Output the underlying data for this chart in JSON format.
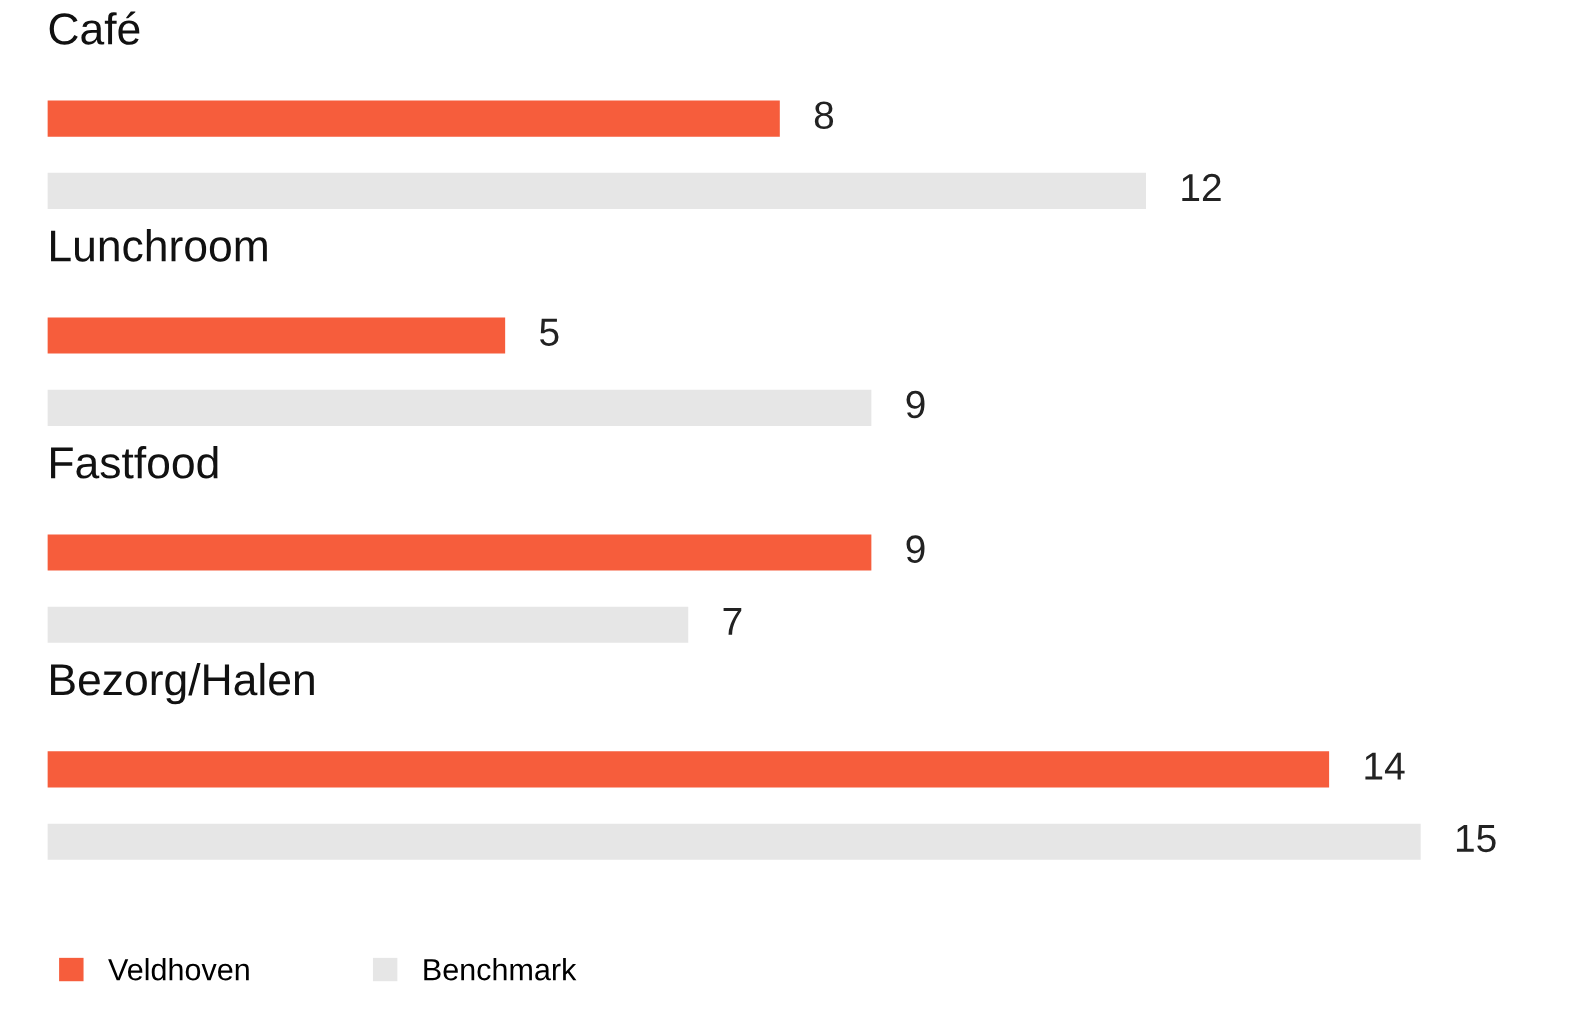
{
  "chart_data": {
    "type": "bar",
    "orientation": "horizontal",
    "categories": [
      "Café",
      "Lunchroom",
      "Fastfood",
      "Bezorg/Halen"
    ],
    "series": [
      {
        "name": "Veldhoven",
        "color": "#f65d3c",
        "values": [
          8,
          5,
          9,
          14
        ]
      },
      {
        "name": "Benchmark",
        "color": "#e6e6e6",
        "values": [
          12,
          9,
          7,
          15
        ]
      }
    ],
    "data_labels": true,
    "legend": "bottom left"
  }
}
